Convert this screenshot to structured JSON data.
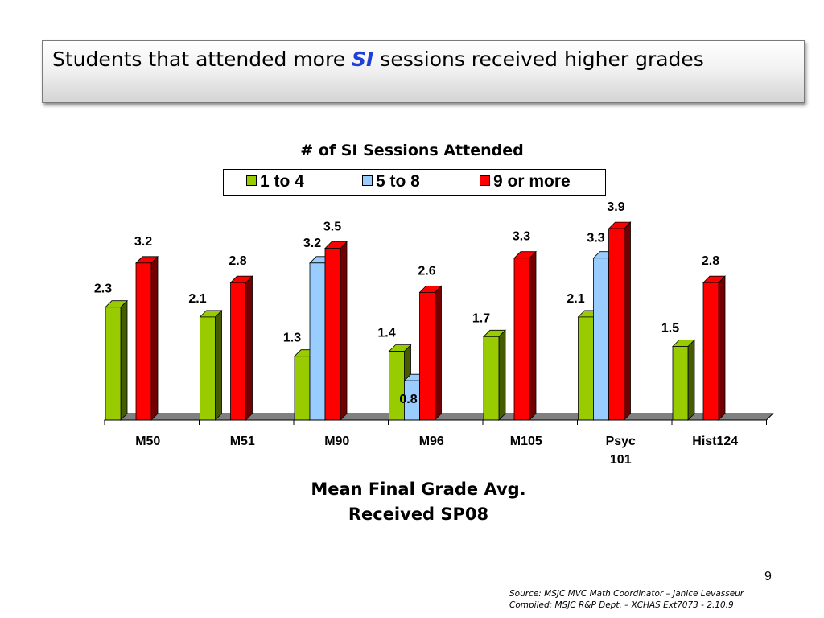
{
  "slide": {
    "title_before": "Students that attended more",
    "title_highlight": "SI",
    "title_after": "sessions received higher grades",
    "page_number": "9",
    "source_line1": "Source: MSJC MVC Math Coordinator – Janice Levasseur",
    "source_line2": "Compiled: MSJC R&P Dept. – XCHAS  Ext7073 -  2.10.9"
  },
  "chart_data": {
    "type": "bar",
    "legend_title": "# of SI Sessions Attended",
    "x_title_line1": "Mean Final Grade Avg.",
    "x_title_line2": "Received SP08",
    "categories": [
      "M50",
      "M51",
      "M90",
      "M96",
      "M105",
      "Psyc 101",
      "Hist124"
    ],
    "series": [
      {
        "name": "1 to 4",
        "color": "#99cc00",
        "values": [
          2.3,
          2.1,
          1.3,
          1.4,
          1.7,
          2.1,
          1.5
        ]
      },
      {
        "name": "5 to 8",
        "color": "#99ccff",
        "values": [
          null,
          null,
          3.2,
          0.8,
          null,
          3.3,
          null
        ]
      },
      {
        "name": "9 or more",
        "color": "#ff0000",
        "values": [
          3.2,
          2.8,
          3.5,
          2.6,
          3.3,
          3.9,
          2.8
        ]
      }
    ],
    "ylim": [
      0,
      4
    ],
    "legend_position": "top",
    "grid": false
  }
}
